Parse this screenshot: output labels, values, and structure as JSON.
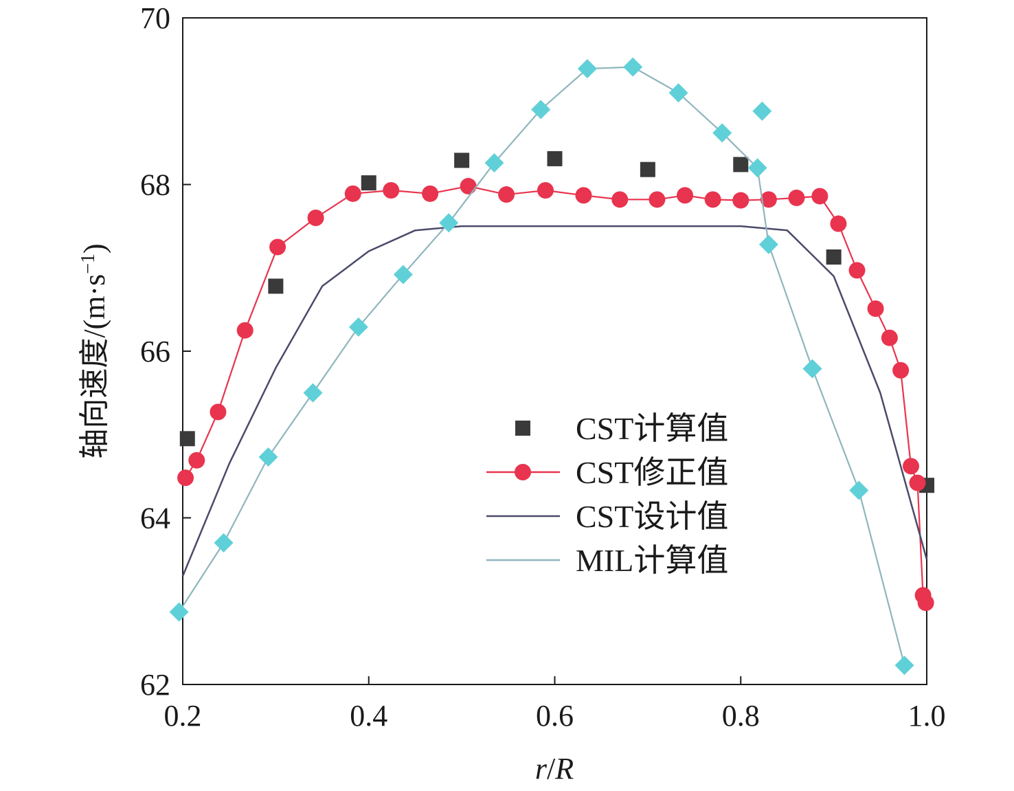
{
  "chart_data": {
    "type": "line",
    "xlabel_italic_r": "r",
    "xlabel_sep": "/",
    "xlabel_italic_R": "R",
    "ylabel_main": "轴向速度/(m·s",
    "ylabel_sup": "−1",
    "ylabel_close": ")",
    "xlim": [
      0.2,
      1.0
    ],
    "ylim": [
      62,
      70
    ],
    "xticks": [
      0.2,
      0.4,
      0.6,
      0.8,
      1.0
    ],
    "xtick_labels": [
      "0.2",
      "0.4",
      "0.6",
      "0.8",
      "1.0"
    ],
    "yticks": [
      62,
      64,
      66,
      68,
      70
    ],
    "ytick_labels": [
      "62",
      "64",
      "66",
      "68",
      "70"
    ],
    "grid": false,
    "legend_position": "center-right",
    "series": [
      {
        "name": "CST计算值",
        "style": "markers",
        "marker": "square",
        "color": "#3a3a3a",
        "x": [
          0.205,
          0.3,
          0.4,
          0.5,
          0.6,
          0.7,
          0.8,
          0.9,
          1.0
        ],
        "y": [
          64.95,
          66.78,
          68.02,
          68.29,
          68.31,
          68.18,
          68.24,
          67.13,
          64.39
        ]
      },
      {
        "name": "CST修正值",
        "style": "line-markers",
        "marker": "circle",
        "color": "#e8344e",
        "x": [
          0.203,
          0.215,
          0.238,
          0.267,
          0.302,
          0.343,
          0.383,
          0.424,
          0.466,
          0.507,
          0.548,
          0.59,
          0.631,
          0.67,
          0.71,
          0.74,
          0.77,
          0.8,
          0.83,
          0.86,
          0.885,
          0.905,
          0.925,
          0.945,
          0.96,
          0.972,
          0.983,
          0.99,
          0.996,
          0.999
        ],
        "y": [
          64.48,
          64.69,
          65.27,
          66.25,
          67.25,
          67.6,
          67.89,
          67.93,
          67.89,
          67.98,
          67.88,
          67.93,
          67.87,
          67.82,
          67.82,
          67.87,
          67.82,
          67.81,
          67.82,
          67.84,
          67.86,
          67.53,
          66.97,
          66.51,
          66.16,
          65.77,
          64.62,
          64.42,
          63.07,
          62.98
        ]
      },
      {
        "name": "CST设计值",
        "style": "line",
        "color": "#4a4a6a",
        "x": [
          0.2,
          0.25,
          0.3,
          0.35,
          0.4,
          0.45,
          0.5,
          0.55,
          0.6,
          0.65,
          0.7,
          0.75,
          0.8,
          0.85,
          0.9,
          0.95,
          1.0
        ],
        "y": [
          63.3,
          64.65,
          65.8,
          66.78,
          67.2,
          67.45,
          67.5,
          67.5,
          67.5,
          67.5,
          67.5,
          67.5,
          67.5,
          67.45,
          66.9,
          65.5,
          63.5
        ]
      },
      {
        "name": "MIL计算值",
        "style": "line-markers",
        "marker": "diamond",
        "line_color": "#8fb5bd",
        "color": "#5fd0d8",
        "x": [
          0.196,
          0.244,
          0.292,
          0.34,
          0.389,
          0.437,
          0.486,
          0.535,
          0.585,
          0.635,
          0.684,
          0.733,
          0.78,
          0.818,
          0.83,
          0.877,
          0.927,
          0.976
        ],
        "y": [
          62.87,
          63.7,
          64.73,
          65.5,
          66.29,
          66.92,
          67.54,
          68.26,
          68.9,
          69.39,
          69.41,
          69.1,
          68.62,
          68.2,
          67.28,
          65.79,
          64.33,
          62.23
        ]
      },
      {
        "name": "",
        "style": "markers",
        "marker": "diamond",
        "color": "#5fd0d8",
        "x": [
          0.823
        ],
        "y": [
          68.88
        ]
      }
    ]
  }
}
